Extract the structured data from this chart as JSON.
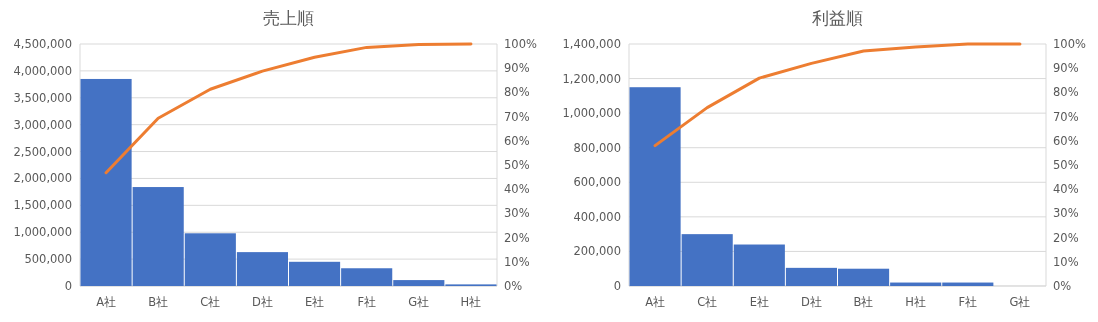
{
  "chart_data": [
    {
      "type": "bar",
      "title": "売上順",
      "categories": [
        "A社",
        "B社",
        "C社",
        "D社",
        "E社",
        "F社",
        "G社",
        "H社"
      ],
      "series": [
        {
          "color": "#4472c4",
          "values": [
            3850000,
            1840000,
            980000,
            630000,
            450000,
            330000,
            110000,
            30000
          ]
        },
        {
          "type": "line",
          "axis": "y2",
          "color": "#ed7d31",
          "values": [
            46.8,
            69.3,
            81.3,
            88.8,
            94.5,
            98.6,
            99.8,
            100
          ]
        }
      ],
      "ylim": [
        0,
        4500000
      ],
      "yticks": [
        {
          "value": 0,
          "label": "0"
        },
        {
          "value": 500000,
          "label": "500,000"
        },
        {
          "value": 1000000,
          "label": "1,000,000"
        },
        {
          "value": 1500000,
          "label": "1,500,000"
        },
        {
          "value": 2000000,
          "label": "2,000,000"
        },
        {
          "value": 2500000,
          "label": "2,500,000"
        },
        {
          "value": 3000000,
          "label": "3,000,000"
        },
        {
          "value": 3500000,
          "label": "3,500,000"
        },
        {
          "value": 4000000,
          "label": "4,000,000"
        },
        {
          "value": 4500000,
          "label": "4,500,000"
        }
      ],
      "y2lim": [
        0,
        100
      ],
      "y2ticks": [
        {
          "value": 0,
          "label": "0%"
        },
        {
          "value": 10,
          "label": "10%"
        },
        {
          "value": 20,
          "label": "20%"
        },
        {
          "value": 30,
          "label": "30%"
        },
        {
          "value": 40,
          "label": "40%"
        },
        {
          "value": 50,
          "label": "50%"
        },
        {
          "value": 60,
          "label": "60%"
        },
        {
          "value": 70,
          "label": "70%"
        },
        {
          "value": 80,
          "label": "80%"
        },
        {
          "value": 90,
          "label": "90%"
        },
        {
          "value": 100,
          "label": "100%"
        }
      ],
      "grid": "y"
    },
    {
      "type": "bar",
      "title": "利益順",
      "categories": [
        "A社",
        "C社",
        "E社",
        "D社",
        "B社",
        "H社",
        "F社",
        "G社"
      ],
      "series": [
        {
          "color": "#4472c4",
          "values": [
            1150000,
            300000,
            240000,
            105000,
            100000,
            20000,
            20000,
            0
          ]
        },
        {
          "type": "line",
          "axis": "y2",
          "color": "#ed7d31",
          "values": [
            58.0,
            73.7,
            85.9,
            92.0,
            97.1,
            98.8,
            100,
            100
          ]
        }
      ],
      "ylim": [
        0,
        1400000
      ],
      "yticks": [
        {
          "value": 0,
          "label": "0"
        },
        {
          "value": 200000,
          "label": "200,000"
        },
        {
          "value": 400000,
          "label": "400,000"
        },
        {
          "value": 600000,
          "label": "600,000"
        },
        {
          "value": 800000,
          "label": "800,000"
        },
        {
          "value": 1000000,
          "label": "1,000,000"
        },
        {
          "value": 1200000,
          "label": "1,200,000"
        },
        {
          "value": 1400000,
          "label": "1,400,000"
        }
      ],
      "y2lim": [
        0,
        100
      ],
      "y2ticks": [
        {
          "value": 0,
          "label": "0%"
        },
        {
          "value": 10,
          "label": "10%"
        },
        {
          "value": 20,
          "label": "20%"
        },
        {
          "value": 30,
          "label": "30%"
        },
        {
          "value": 40,
          "label": "40%"
        },
        {
          "value": 50,
          "label": "50%"
        },
        {
          "value": 60,
          "label": "60%"
        },
        {
          "value": 70,
          "label": "70%"
        },
        {
          "value": 80,
          "label": "80%"
        },
        {
          "value": 90,
          "label": "90%"
        },
        {
          "value": 100,
          "label": "100%"
        }
      ],
      "grid": "y"
    }
  ]
}
